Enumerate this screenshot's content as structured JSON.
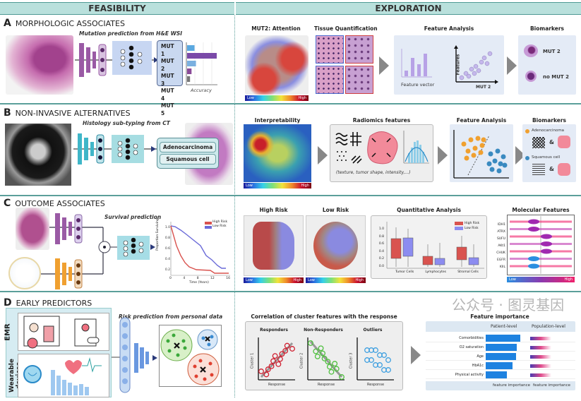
{
  "headers": {
    "feasibility": "FEASIBILITY",
    "exploration": "EXPLORATION"
  },
  "sectionA": {
    "letter": "A",
    "title": "MORPHOLOGIC ASSOCIATES",
    "subtitle": "Mutation prediction from H&E WSI",
    "mutations": [
      "MUT 1",
      "MUT 2",
      "MUT 3",
      "MUT 4",
      "MUT 5"
    ],
    "accuracy_label": "Accuracy",
    "accuracy_values": [
      0.25,
      1.0,
      0.3,
      0.15,
      0.1
    ],
    "attention": {
      "title": "MUT2: Attention",
      "low": "Low",
      "high": "High"
    },
    "tissue_title": "Tissue Quantification",
    "feature_analysis": {
      "title": "Feature Analysis",
      "vector_label": "Feature vector",
      "y_label": "Features",
      "x_label": "MUT 2"
    },
    "biomarkers": {
      "title": "Biomarkers",
      "items": [
        "MUT 2",
        "no MUT 2"
      ]
    }
  },
  "sectionB": {
    "letter": "B",
    "title": "NON-INVASIVE ALTERNATIVES",
    "subtitle": "Histology sub-typing from CT",
    "classes": [
      "Adenocarcinoma",
      "Squamous cell"
    ],
    "interpretability": {
      "title": "Interpretability",
      "low": "Low",
      "high": "High"
    },
    "radiomics": {
      "title": "Radiomics features",
      "caption": "(texture, tumor shape, intensity,...)"
    },
    "feature_analysis_title": "Feature Analysis",
    "biomarkers": {
      "title": "Biomarkers",
      "items": [
        "Adenocarcinoma",
        "Squamous cell"
      ],
      "amp": "&"
    }
  },
  "sectionC": {
    "letter": "C",
    "title": "OUTCOME ASSOCIATES",
    "subtitle": "Survival prediction",
    "km": {
      "legend": [
        "High Risk",
        "Low Risk"
      ],
      "y_label": "Proportion Surviving",
      "x_label": "Time (Years)",
      "y_ticks": [
        "1.0",
        "0.8",
        "0.6",
        "0.4",
        "0.2"
      ],
      "x_ticks": [
        "0",
        "4",
        "8",
        "12",
        "16"
      ]
    },
    "high_risk": {
      "title": "High Risk",
      "low": "Low",
      "high": "High"
    },
    "low_risk": {
      "title": "Low Risk",
      "low": "Low",
      "high": "High"
    },
    "quant": {
      "title": "Quantitative Analysis",
      "legend": [
        "High Risk",
        "Low Risk"
      ],
      "y_ticks": [
        "1.0",
        "0.8",
        "0.6",
        "0.4",
        "0.2",
        "0.0"
      ],
      "categories": [
        "Tumor Cells",
        "Lymphocytes",
        "Stromal Cells"
      ]
    },
    "molecular": {
      "title": "Molecular Features",
      "genes": [
        "IDH1",
        "ATRX",
        "SUFU",
        "AKt1",
        "CHUK",
        "EGFR",
        "KIIL"
      ],
      "low": "Low",
      "high": "High"
    }
  },
  "sectionD": {
    "letter": "D",
    "title": "EARLY PREDICTORS",
    "subtitle": "Risk prediction from personal data",
    "inputs": [
      "EMR",
      "Wearable devices"
    ],
    "correlation": {
      "title": "Correlation of cluster features with the response",
      "plots": [
        {
          "title": "Responders",
          "y": "Cluster 1",
          "x": "Response"
        },
        {
          "title": "Non-Responders",
          "y": "Cluster 2",
          "x": "Response"
        },
        {
          "title": "Outliers",
          "y": "Cluster 3",
          "x": "Response"
        }
      ]
    },
    "importance": {
      "title": "Feature importance",
      "patient": "Patient-level",
      "population": "Population-level",
      "features": [
        "Comorbidities",
        "O2 saturation",
        "Age",
        "HbA1c",
        "Physical activity"
      ],
      "values": [
        0.82,
        0.74,
        0.72,
        0.64,
        0.5
      ],
      "x_label": "feature importance"
    }
  },
  "watermark": "公众号 · 图灵基因",
  "colors": {
    "header": "#b9e0dc",
    "divider": "#5b9f9a",
    "purple": "#9a5aa5",
    "cyan": "#3fb6c8",
    "orange": "#f0a030",
    "high_risk": "#d9534f",
    "low_risk": "#7a7ae6"
  }
}
